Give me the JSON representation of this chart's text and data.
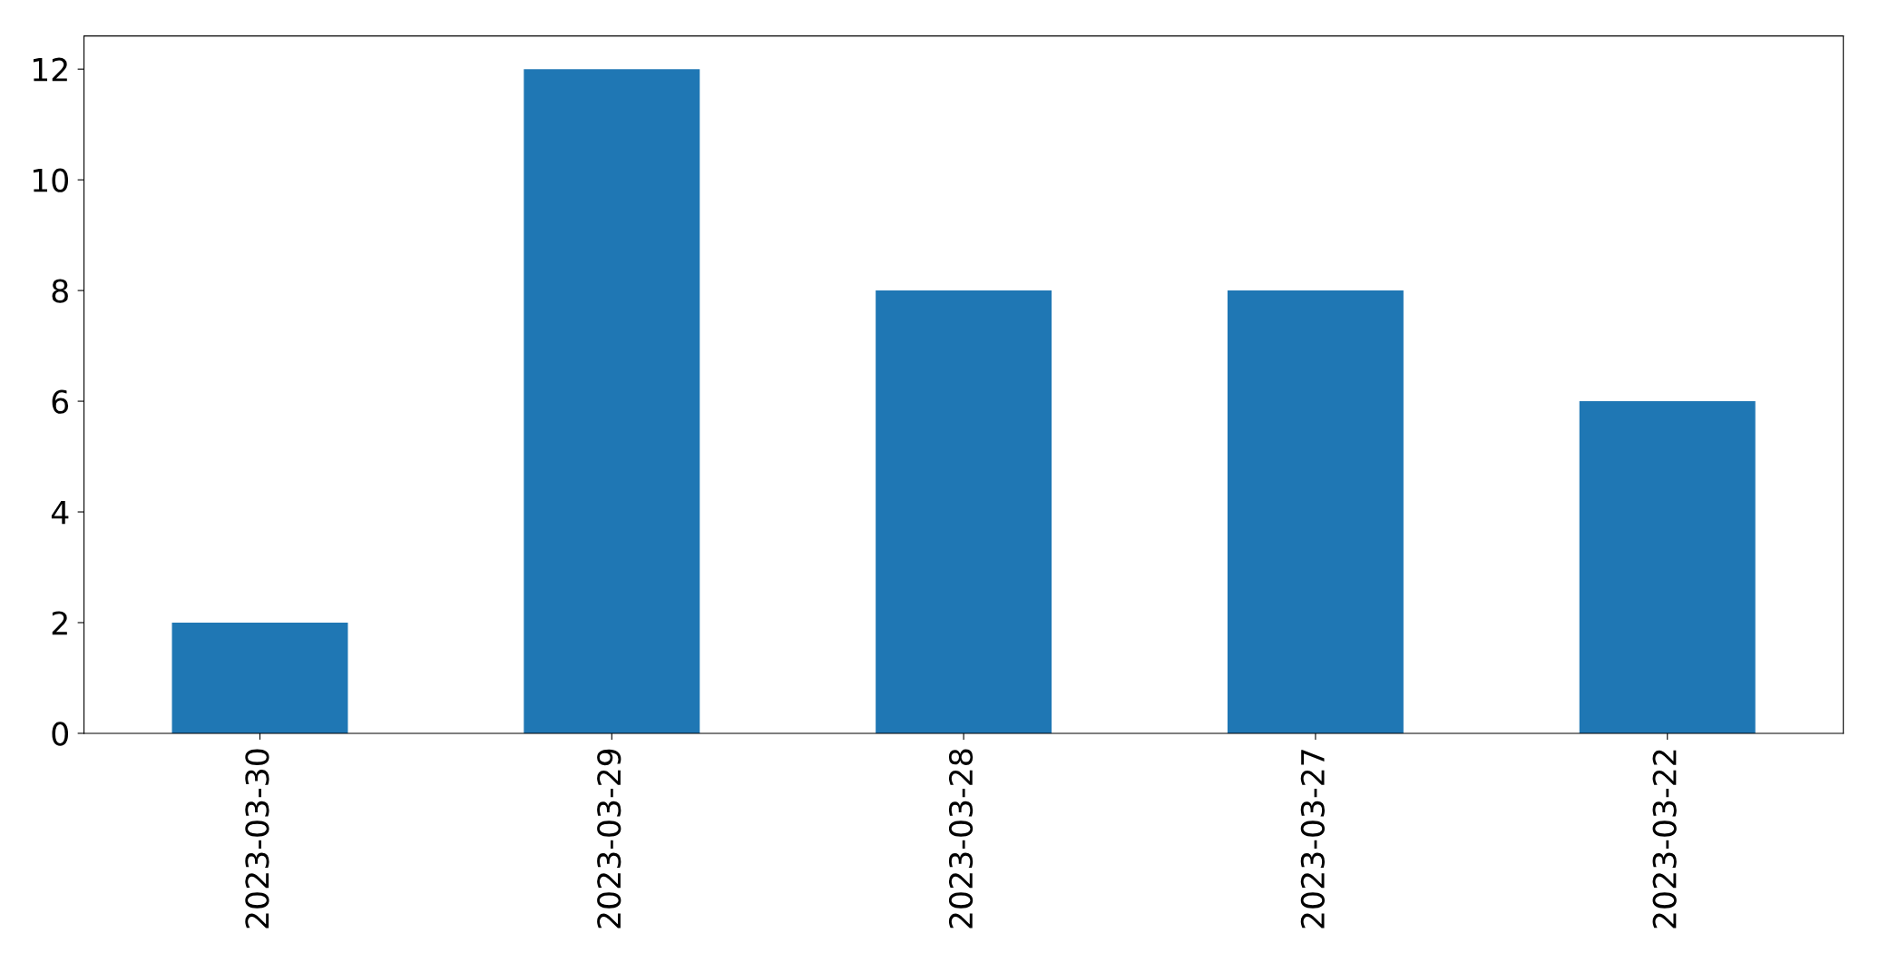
{
  "chart_data": {
    "type": "bar",
    "categories": [
      "2023-03-30",
      "2023-03-29",
      "2023-03-28",
      "2023-03-27",
      "2023-03-22"
    ],
    "values": [
      2,
      12,
      8,
      8,
      6
    ],
    "color": "#1f77b4",
    "ylim": [
      0,
      12.6
    ],
    "yticks": [
      0,
      2,
      4,
      6,
      8,
      10,
      12
    ],
    "grid": false,
    "legend": false
  }
}
